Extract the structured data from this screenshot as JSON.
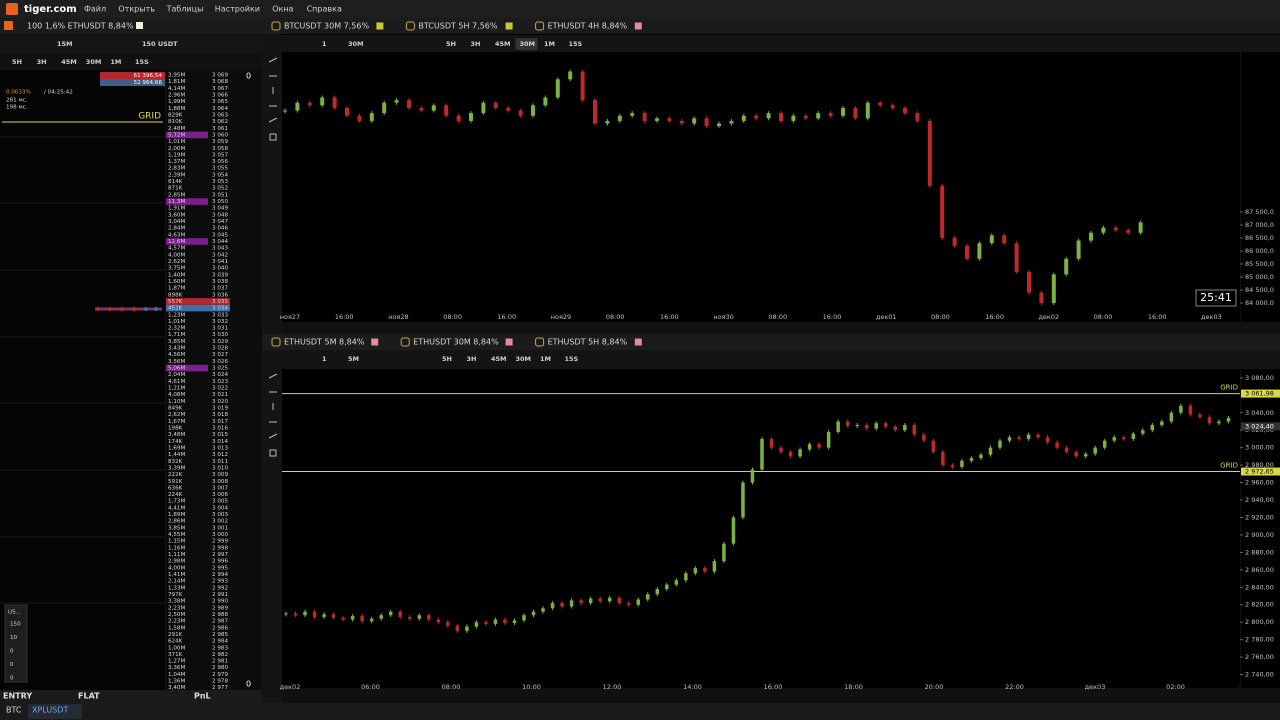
{
  "menu": {
    "logo": "tiger.com",
    "items": [
      "Файл",
      "Открыть",
      "Таблицы",
      "Настройки",
      "Окна",
      "Справка"
    ]
  },
  "left_panel": {
    "tab": "100 1,6% ETHUSDT 8,84%",
    "toolbar": {
      "interval": "15M",
      "amount": "150 USDT"
    },
    "timeframes": [
      "5H",
      "3H",
      "45M",
      "30M",
      "1M",
      "15S"
    ],
    "ask_total": "61 396,54",
    "bid_total": "52 964,66",
    "spread": "0.0033%",
    "timer": "/ 04:25:42",
    "latency1": "281 мс.",
    "latency2": "198 мс.",
    "grid_label": "GRID",
    "orderbook_header": "0",
    "orderbook_footer": "0",
    "rows": [
      {
        "p": "3 069",
        "v": "3,95M"
      },
      {
        "p": "3 068",
        "v": "1,81M"
      },
      {
        "p": "3 067",
        "v": "4,14M"
      },
      {
        "p": "3 066",
        "v": "2,96M"
      },
      {
        "p": "3 065",
        "v": "1,99M"
      },
      {
        "p": "3 064",
        "v": "1,88M"
      },
      {
        "p": "3 063",
        "v": "829K"
      },
      {
        "p": "3 062",
        "v": "810K"
      },
      {
        "p": "3 061",
        "v": "2,48M"
      },
      {
        "p": "3 060",
        "v": "5,72M",
        "c": "#7a1f8c"
      },
      {
        "p": "3 059",
        "v": "1,01M"
      },
      {
        "p": "3 058",
        "v": "2,00M"
      },
      {
        "p": "3 057",
        "v": "1,19M"
      },
      {
        "p": "3 056",
        "v": "1,37M"
      },
      {
        "p": "3 055",
        "v": "2,83M"
      },
      {
        "p": "3 054",
        "v": "2,39M"
      },
      {
        "p": "3 053",
        "v": "814K"
      },
      {
        "p": "3 052",
        "v": "871K"
      },
      {
        "p": "3 051",
        "v": "2,85M"
      },
      {
        "p": "3 050",
        "v": "11,3M",
        "c": "#7a1f8c"
      },
      {
        "p": "3 049",
        "v": "1,91M"
      },
      {
        "p": "3 048",
        "v": "3,60M"
      },
      {
        "p": "3 047",
        "v": "3,04M"
      },
      {
        "p": "3 046",
        "v": "2,84M"
      },
      {
        "p": "3 045",
        "v": "4,63M"
      },
      {
        "p": "3 044",
        "v": "12,6M",
        "c": "#7a1f8c"
      },
      {
        "p": "3 043",
        "v": "4,57M"
      },
      {
        "p": "3 042",
        "v": "4,00M"
      },
      {
        "p": "3 041",
        "v": "2,62M"
      },
      {
        "p": "3 040",
        "v": "3,75M"
      },
      {
        "p": "3 039",
        "v": "1,40M"
      },
      {
        "p": "3 038",
        "v": "1,60M"
      },
      {
        "p": "3 037",
        "v": "1,87M"
      },
      {
        "p": "3 036",
        "v": "898K"
      },
      {
        "p": "3 035",
        "v": "557K",
        "c": "#b3262e"
      },
      {
        "p": "3 034",
        "v": "452K",
        "c": "#3d6fa8"
      },
      {
        "p": "3 033",
        "v": "1,23M"
      },
      {
        "p": "3 032",
        "v": "1,01M"
      },
      {
        "p": "3 031",
        "v": "2,32M"
      },
      {
        "p": "3 030",
        "v": "1,71M"
      },
      {
        "p": "3 029",
        "v": "3,85M"
      },
      {
        "p": "3 028",
        "v": "3,43M"
      },
      {
        "p": "3 027",
        "v": "4,56M"
      },
      {
        "p": "3 026",
        "v": "3,56M"
      },
      {
        "p": "3 025",
        "v": "5,06M",
        "c": "#7a1f8c"
      },
      {
        "p": "3 024",
        "v": "2,04M"
      },
      {
        "p": "3 023",
        "v": "4,61M"
      },
      {
        "p": "3 022",
        "v": "1,21M"
      },
      {
        "p": "3 021",
        "v": "4,08M"
      },
      {
        "p": "3 020",
        "v": "1,10M"
      },
      {
        "p": "3 019",
        "v": "849K"
      },
      {
        "p": "3 018",
        "v": "2,62M"
      },
      {
        "p": "3 017",
        "v": "1,67M"
      },
      {
        "p": "3 016",
        "v": "198K"
      },
      {
        "p": "3 015",
        "v": "3,48M"
      },
      {
        "p": "3 014",
        "v": "174K"
      },
      {
        "p": "3 013",
        "v": "1,69M"
      },
      {
        "p": "3 012",
        "v": "1,44M"
      },
      {
        "p": "3 011",
        "v": "832K"
      },
      {
        "p": "3 010",
        "v": "3,39M"
      },
      {
        "p": "3 009",
        "v": "222K"
      },
      {
        "p": "3 008",
        "v": "591K"
      },
      {
        "p": "3 007",
        "v": "636K"
      },
      {
        "p": "3 006",
        "v": "224K"
      },
      {
        "p": "3 005",
        "v": "1,73M"
      },
      {
        "p": "3 004",
        "v": "4,41M"
      },
      {
        "p": "3 003",
        "v": "1,89M"
      },
      {
        "p": "3 002",
        "v": "2,86M"
      },
      {
        "p": "3 001",
        "v": "3,85M"
      },
      {
        "p": "3 000",
        "v": "4,55M"
      },
      {
        "p": "2 999",
        "v": "1,15M"
      },
      {
        "p": "2 998",
        "v": "1,16M"
      },
      {
        "p": "2 997",
        "v": "1,11M"
      },
      {
        "p": "2 996",
        "v": "2,98M"
      },
      {
        "p": "2 995",
        "v": "4,00M"
      },
      {
        "p": "2 994",
        "v": "1,41M"
      },
      {
        "p": "2 993",
        "v": "2,14M"
      },
      {
        "p": "2 992",
        "v": "1,33M"
      },
      {
        "p": "2 991",
        "v": "797K"
      },
      {
        "p": "2 990",
        "v": "3,38M"
      },
      {
        "p": "2 989",
        "v": "2,23M"
      },
      {
        "p": "2 988",
        "v": "2,50M"
      },
      {
        "p": "2 987",
        "v": "2,23M"
      },
      {
        "p": "2 986",
        "v": "1,58M"
      },
      {
        "p": "2 985",
        "v": "291K"
      },
      {
        "p": "2 984",
        "v": "624K"
      },
      {
        "p": "2 983",
        "v": "1,00M"
      },
      {
        "p": "2 982",
        "v": "371K"
      },
      {
        "p": "2 981",
        "v": "1,27M"
      },
      {
        "p": "2 980",
        "v": "3,36M"
      },
      {
        "p": "2 979",
        "v": "1,04M"
      },
      {
        "p": "2 978",
        "v": "1,36M"
      },
      {
        "p": "2 977",
        "v": "3,40M"
      }
    ],
    "mini_box": {
      "title": "US...",
      "values": [
        "150",
        "10",
        "0",
        "0",
        "0"
      ]
    },
    "footer": [
      "ENTRY",
      "FLAT",
      "PnL"
    ]
  },
  "status_bar": {
    "tabs": [
      "BTC",
      "XPLUSDT"
    ]
  },
  "chart_data": [
    {
      "type": "candlestick",
      "tabs": [
        "BTCUSDT 30M 7,56%",
        "BTCUSDT 5H 7,56%",
        "ETHUSDT 4H 8,84%"
      ],
      "tab_colors": [
        "#c8c83c",
        "#c8c83c",
        "#e88a9a"
      ],
      "toolbar": {
        "count": "1",
        "interval": "30M"
      },
      "timeframes": [
        "5H",
        "3H",
        "45M",
        "30M",
        "1M",
        "15S"
      ],
      "active_timeframe": 3,
      "x_labels": [
        "ноя27",
        "16:00",
        "ноя28",
        "08:00",
        "16:00",
        "ноя29",
        "08:00",
        "16:00",
        "ноя30",
        "08:00",
        "16:00",
        "дек01",
        "08:00",
        "16:00",
        "дек02",
        "08:00",
        "16:00",
        "дек03"
      ],
      "values": [
        91400,
        91700,
        91600,
        91900,
        91500,
        91200,
        91000,
        91300,
        91700,
        91800,
        91500,
        91400,
        91600,
        91200,
        91000,
        91300,
        91700,
        91500,
        91400,
        91200,
        91600,
        91900,
        92600,
        92900,
        91800,
        90900,
        91000,
        91200,
        91300,
        91000,
        91100,
        91000,
        90900,
        91100,
        90800,
        90900,
        91000,
        91200,
        91100,
        91300,
        91000,
        91200,
        91100,
        91300,
        91200,
        91500,
        91100,
        91700,
        91600,
        91500,
        91300,
        91000,
        88500,
        86500,
        86200,
        85700,
        86300,
        86600,
        86300,
        85200,
        84400,
        84000,
        85100,
        85700,
        86400,
        86700,
        86900,
        86800,
        86700,
        87100
      ],
      "up_color": "#7cb342",
      "down_color": "#c0282d",
      "ylim": [
        83270,
        93650
      ],
      "yticks": [
        {
          "value": 84000,
          "label": "84 000,0"
        },
        {
          "value": 84500,
          "label": "84 500,0"
        },
        {
          "value": 85000,
          "label": "85 000,0"
        },
        {
          "value": 85500,
          "label": "85 500,0"
        },
        {
          "value": 86000,
          "label": "86 000,0"
        },
        {
          "value": 86500,
          "label": "86 500,0"
        },
        {
          "value": 87000,
          "label": "87 000,0"
        },
        {
          "value": 87500,
          "label": "87 500,0"
        }
      ],
      "timer": "25:41"
    },
    {
      "type": "candlestick",
      "tabs": [
        "ETHUSDT 5M 8,84%",
        "ETHUSDT 30M 8,84%",
        "ETHUSDT 5H 8,84%"
      ],
      "tab_colors": [
        "#e88a9a",
        "#e88a9a",
        "#e88a9a"
      ],
      "toolbar": {
        "count": "1",
        "interval": "5M"
      },
      "timeframes": [
        "5H",
        "3H",
        "45M",
        "30M",
        "1M",
        "15S"
      ],
      "active_timeframe": -1,
      "x_labels": [
        "дек02",
        "06:00",
        "08:00",
        "10:00",
        "12:00",
        "14:00",
        "16:00",
        "18:00",
        "20:00",
        "22:00",
        "дек03",
        "02:00"
      ],
      "values": [
        2810,
        2808,
        2812,
        2806,
        2809,
        2805,
        2803,
        2807,
        2801,
        2804,
        2808,
        2812,
        2806,
        2804,
        2808,
        2803,
        2800,
        2796,
        2790,
        2795,
        2800,
        2798,
        2803,
        2799,
        2802,
        2808,
        2812,
        2816,
        2822,
        2818,
        2825,
        2822,
        2827,
        2824,
        2828,
        2822,
        2820,
        2826,
        2832,
        2838,
        2843,
        2848,
        2856,
        2862,
        2858,
        2870,
        2890,
        2920,
        2960,
        2975,
        3010,
        3000,
        2995,
        2990,
        2998,
        3004,
        3000,
        3018,
        3030,
        3025,
        3026,
        3022,
        3028,
        3024,
        3020,
        3026,
        3015,
        3008,
        2995,
        2980,
        2978,
        2985,
        2988,
        2992,
        3000,
        3008,
        3012,
        3010,
        3015,
        3012,
        3006,
        3000,
        2995,
        2990,
        2993,
        3000,
        3008,
        3012,
        3010,
        3016,
        3020,
        3026,
        3030,
        3040,
        3048,
        3038,
        3035,
        3028,
        3030,
        3034
      ],
      "up_color": "#7cb342",
      "down_color": "#c0282d",
      "ylim": [
        2728,
        3089
      ],
      "yticks": [
        {
          "value": 3080,
          "label": "3 080,00"
        },
        {
          "value": 3040,
          "label": "3 040,00"
        },
        {
          "value": 3020,
          "label": "3 020,00"
        },
        {
          "value": 3000,
          "label": "3 000,00"
        },
        {
          "value": 2980,
          "label": "2 980,00"
        },
        {
          "value": 2960,
          "label": "2 960,00"
        },
        {
          "value": 2940,
          "label": "2 940,00"
        },
        {
          "value": 2920,
          "label": "2 920,00"
        },
        {
          "value": 2900,
          "label": "2 900,00"
        },
        {
          "value": 2880,
          "label": "2 880,00"
        },
        {
          "value": 2860,
          "label": "2 860,00"
        },
        {
          "value": 2840,
          "label": "2 840,00"
        },
        {
          "value": 2820,
          "label": "2 820,00"
        },
        {
          "value": 2800,
          "label": "2 800,00"
        },
        {
          "value": 2780,
          "label": "2 780,00"
        },
        {
          "value": 2760,
          "label": "2 760,00"
        },
        {
          "value": 2740,
          "label": "2 740,00"
        }
      ],
      "levels": [
        {
          "value": 3061.98,
          "label": "3 061,98",
          "name": "GRID"
        },
        {
          "value": 2972.65,
          "label": "2 972,65",
          "name": "GRID"
        }
      ],
      "level_color": "#d8d84a",
      "last_price": {
        "value": 3024.4,
        "label": "3 024,40"
      }
    }
  ]
}
